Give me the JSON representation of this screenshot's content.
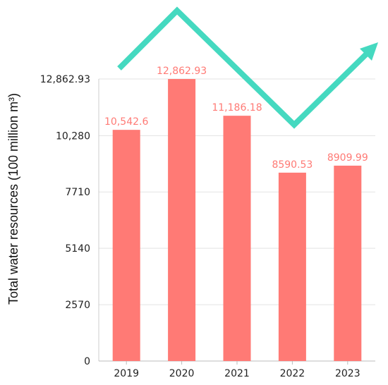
{
  "chart_data": {
    "type": "bar",
    "title": "",
    "xlabel": "",
    "ylabel": "Total water resources  (100 million m³)",
    "categories": [
      "2019",
      "2020",
      "2021",
      "2022",
      "2023"
    ],
    "series": [
      {
        "values": [
          10542.6,
          12862.93,
          11186.18,
          8590.53,
          8909.99
        ],
        "data_labels": [
          "10,542.6",
          "12,862.93",
          "11,186.18",
          "8590.53",
          "8909.99"
        ]
      }
    ],
    "yticks": [
      0,
      2570,
      5140,
      7710,
      10280,
      12862.93
    ],
    "ytick_labels": [
      "0",
      "2570",
      "5140",
      "7710",
      "10,280",
      "12,862.93"
    ],
    "ylim": [
      0,
      12862.93
    ],
    "grid": true,
    "legend": "none",
    "colors": {
      "bar": "#ff7a75",
      "data_label": "#ff7a75",
      "trend_arrow": "#45d9c0",
      "grid": "#e3e3e3"
    },
    "trend_arrow": "decorative zigzag arrow following the up-down-up trend"
  }
}
